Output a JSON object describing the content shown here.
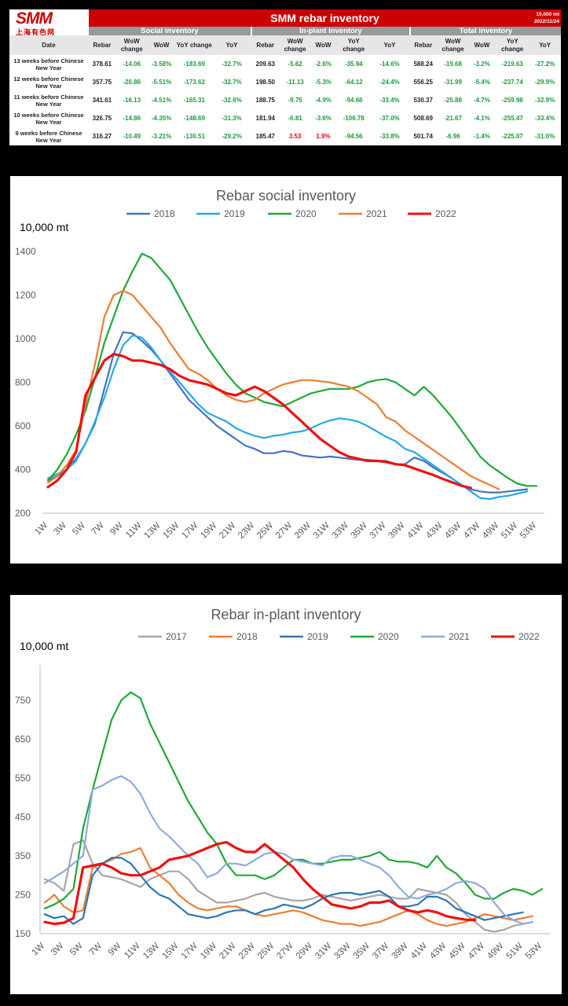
{
  "header": {
    "logo_text": "SMM",
    "logo_sub": "上海有色网",
    "title": "SMM rebar inventory",
    "unit": "10,000 mt",
    "date": "2022/11/24",
    "groups": [
      "Social inventory",
      "In-plant inventory",
      "Total inventory"
    ],
    "columns": [
      "Date",
      "Rebar",
      "WoW change",
      "WoW",
      "YoY change",
      "YoY",
      "Rebar",
      "WoW change",
      "WoW",
      "YoY change",
      "YoY",
      "Rebar",
      "WoW change",
      "WoW",
      "YoY change",
      "YoY"
    ]
  },
  "rows": [
    {
      "date": "13 weeks before Chinese New Year",
      "cells": [
        "378.61",
        "-14.06",
        "-3.58%",
        "-183.69",
        "-32.7%",
        "209.63",
        "-5.62",
        "-2.6%",
        "-35.94",
        "-14.6%",
        "588.24",
        "-19.68",
        "-3.2%",
        "-219.63",
        "-27.2%"
      ]
    },
    {
      "date": "12 weeks before Chinese New Year",
      "cells": [
        "357.75",
        "-20.86",
        "-5.51%",
        "-173.62",
        "-32.7%",
        "198.50",
        "-11.13",
        "-5.3%",
        "-64.12",
        "-24.4%",
        "556.25",
        "-31.99",
        "-5.4%",
        "-237.74",
        "-29.9%"
      ]
    },
    {
      "date": "11 weeks before Chinese New Year",
      "cells": [
        "341.61",
        "-16.13",
        "-4.51%",
        "-165.31",
        "-32.6%",
        "188.75",
        "-9.75",
        "-4.9%",
        "-94.66",
        "-33.4%",
        "530.37",
        "-25.88",
        "-4.7%",
        "-259.98",
        "-32.9%"
      ]
    },
    {
      "date": "10 weeks before Chinese New Year",
      "cells": [
        "326.75",
        "-14.86",
        "-4.35%",
        "-148.69",
        "-31.3%",
        "181.94",
        "-6.81",
        "-3.6%",
        "-106.78",
        "-37.0%",
        "508.69",
        "-21.67",
        "-4.1%",
        "-255.47",
        "-33.4%"
      ]
    },
    {
      "date": "9 weeks before Chinese New Year",
      "cells": [
        "316.27",
        "-10.49",
        "-3.21%",
        "-130.51",
        "-29.2%",
        "185.47",
        "3.53",
        "1.9%",
        "-94.56",
        "-33.8%",
        "501.74",
        "-6.96",
        "-1.4%",
        "-225.07",
        "-31.0%"
      ]
    }
  ],
  "colors": {
    "brand": "#cc0000",
    "positive": "#e00000",
    "negative": "#1a9b3a",
    "2017": "#a6a6a6",
    "2018": "#ed7d31",
    "2019": "#2e75b6",
    "2020": "#1fa83a",
    "2021": "#8faadc",
    "2022": "#ee1111",
    "social_2018": "#4472c4",
    "social_2019": "#26a9e8",
    "social_2021": "#ed7d31"
  },
  "chart_data": [
    {
      "type": "line",
      "title": "Rebar social inventory",
      "ylabel": "10,000 mt",
      "ylim": [
        200,
        1400
      ],
      "yticks": [
        200,
        400,
        600,
        800,
        1000,
        1200,
        1400
      ],
      "xticks": [
        "1W",
        "3W",
        "5W",
        "7W",
        "9W",
        "11W",
        "13W",
        "15W",
        "17W",
        "19W",
        "21W",
        "23W",
        "25W",
        "27W",
        "29W",
        "31W",
        "33W",
        "35W",
        "37W",
        "39W",
        "41W",
        "43W",
        "45W",
        "47W",
        "49W",
        "51W",
        "53W"
      ],
      "x_count": 53,
      "legend": "top",
      "series": [
        {
          "name": "2018",
          "color": "#4472c4",
          "values": [
            350,
            370,
            400,
            450,
            520,
            610,
            770,
            930,
            1030,
            1025,
            990,
            950,
            900,
            840,
            780,
            720,
            680,
            640,
            600,
            570,
            540,
            510,
            495,
            475,
            475,
            485,
            480,
            465,
            460,
            455,
            460,
            455,
            450,
            445,
            445,
            440,
            440,
            425,
            425,
            455,
            440,
            410,
            385,
            360,
            330,
            310,
            300,
            295,
            295,
            300,
            305,
            310
          ]
        },
        {
          "name": "2019",
          "color": "#26a9e8",
          "values": [
            360,
            380,
            400,
            440,
            520,
            620,
            730,
            860,
            970,
            1015,
            1005,
            960,
            900,
            850,
            800,
            750,
            700,
            660,
            640,
            620,
            590,
            570,
            555,
            545,
            555,
            560,
            570,
            575,
            590,
            610,
            625,
            635,
            630,
            620,
            600,
            575,
            550,
            530,
            495,
            480,
            450,
            420,
            390,
            360,
            330,
            300,
            270,
            265,
            275,
            280,
            290,
            300
          ]
        },
        {
          "name": "2020",
          "color": "#1fa83a",
          "values": [
            350,
            400,
            470,
            560,
            670,
            820,
            980,
            1100,
            1220,
            1310,
            1390,
            1370,
            1320,
            1270,
            1190,
            1110,
            1030,
            960,
            900,
            840,
            790,
            750,
            730,
            710,
            700,
            690,
            710,
            730,
            750,
            760,
            770,
            770,
            770,
            780,
            800,
            810,
            815,
            800,
            770,
            740,
            780,
            740,
            690,
            640,
            580,
            520,
            460,
            420,
            390,
            360,
            335,
            325,
            325
          ]
        },
        {
          "name": "2021",
          "color": "#ed7d31",
          "values": [
            340,
            370,
            420,
            490,
            700,
            880,
            1100,
            1200,
            1220,
            1200,
            1150,
            1100,
            1050,
            980,
            920,
            860,
            840,
            810,
            770,
            740,
            720,
            710,
            720,
            750,
            770,
            790,
            800,
            810,
            810,
            805,
            800,
            790,
            780,
            760,
            730,
            700,
            640,
            620,
            580,
            550,
            520,
            490,
            460,
            430,
            400,
            370,
            350,
            330,
            310
          ]
        },
        {
          "name": "2022",
          "color": "#ee1111",
          "values": [
            320,
            350,
            400,
            480,
            740,
            820,
            900,
            930,
            920,
            900,
            900,
            890,
            880,
            860,
            830,
            810,
            800,
            790,
            770,
            750,
            740,
            760,
            780,
            760,
            730,
            700,
            660,
            620,
            580,
            540,
            510,
            480,
            460,
            450,
            440,
            440,
            435,
            425,
            420,
            405,
            390,
            375,
            358,
            342,
            326,
            316
          ]
        }
      ]
    },
    {
      "type": "line",
      "title": "Rebar in-plant inventory",
      "ylabel": "10,000 mt",
      "ylim": [
        150,
        800
      ],
      "yticks": [
        150,
        250,
        350,
        450,
        550,
        650,
        750
      ],
      "xticks": [
        "1W",
        "3W",
        "5W",
        "7W",
        "9W",
        "11W",
        "13W",
        "15W",
        "17W",
        "19W",
        "21W",
        "23W",
        "25W",
        "27W",
        "29W",
        "31W",
        "33W",
        "35W",
        "37W",
        "39W",
        "41W",
        "43W",
        "45W",
        "47W",
        "49W",
        "51W",
        "53W"
      ],
      "x_count": 53,
      "legend": "top",
      "series": [
        {
          "name": "2017",
          "color": "#a6a6a6",
          "values": [
            290,
            280,
            260,
            380,
            390,
            330,
            300,
            295,
            290,
            280,
            270,
            290,
            300,
            310,
            310,
            290,
            260,
            245,
            230,
            230,
            235,
            240,
            250,
            255,
            245,
            240,
            235,
            235,
            240,
            250,
            245,
            240,
            235,
            240,
            245,
            250,
            245,
            240,
            240,
            265,
            260,
            255,
            250,
            230,
            200,
            180,
            160,
            155,
            160,
            170,
            175,
            180
          ]
        },
        {
          "name": "2018",
          "color": "#ed7d31",
          "values": [
            230,
            250,
            220,
            205,
            210,
            320,
            330,
            340,
            355,
            360,
            370,
            320,
            300,
            280,
            250,
            230,
            215,
            210,
            215,
            220,
            220,
            210,
            200,
            195,
            200,
            205,
            210,
            205,
            195,
            185,
            180,
            175,
            175,
            170,
            175,
            180,
            190,
            200,
            210,
            200,
            185,
            175,
            170,
            175,
            180,
            190,
            200,
            195,
            190,
            185,
            190,
            195
          ]
        },
        {
          "name": "2019",
          "color": "#2e75b6",
          "values": [
            200,
            190,
            195,
            175,
            190,
            300,
            330,
            345,
            345,
            330,
            300,
            270,
            250,
            240,
            220,
            200,
            195,
            190,
            195,
            205,
            210,
            210,
            200,
            210,
            215,
            225,
            220,
            215,
            225,
            240,
            250,
            255,
            255,
            250,
            255,
            260,
            245,
            220,
            220,
            225,
            245,
            245,
            235,
            215,
            205,
            195,
            185,
            190,
            195,
            200,
            205
          ]
        },
        {
          "name": "2020",
          "color": "#1fa83a",
          "values": [
            215,
            225,
            240,
            265,
            420,
            520,
            610,
            700,
            750,
            770,
            755,
            690,
            640,
            590,
            540,
            490,
            450,
            410,
            380,
            330,
            300,
            300,
            300,
            290,
            300,
            320,
            340,
            340,
            330,
            330,
            335,
            340,
            340,
            345,
            350,
            360,
            340,
            335,
            335,
            330,
            320,
            350,
            320,
            305,
            280,
            250,
            240,
            240,
            255,
            265,
            260,
            250,
            265
          ]
        },
        {
          "name": "2021",
          "color": "#8faadc",
          "values": [
            280,
            295,
            310,
            330,
            350,
            520,
            530,
            545,
            555,
            540,
            510,
            460,
            420,
            400,
            375,
            350,
            330,
            295,
            305,
            330,
            330,
            325,
            340,
            355,
            360,
            355,
            340,
            335,
            330,
            325,
            345,
            350,
            350,
            340,
            330,
            320,
            300,
            270,
            245,
            240,
            250,
            255,
            265,
            280,
            285,
            280,
            265,
            230,
            200,
            185,
            175,
            180
          ]
        },
        {
          "name": "2022",
          "color": "#ee1111",
          "values": [
            180,
            175,
            178,
            190,
            320,
            325,
            330,
            320,
            305,
            300,
            300,
            310,
            320,
            340,
            345,
            350,
            360,
            370,
            380,
            385,
            370,
            360,
            360,
            380,
            360,
            340,
            320,
            290,
            265,
            245,
            225,
            220,
            215,
            220,
            230,
            230,
            235,
            220,
            210,
            205,
            210,
            205,
            195,
            190,
            186,
            185
          ]
        }
      ]
    }
  ]
}
